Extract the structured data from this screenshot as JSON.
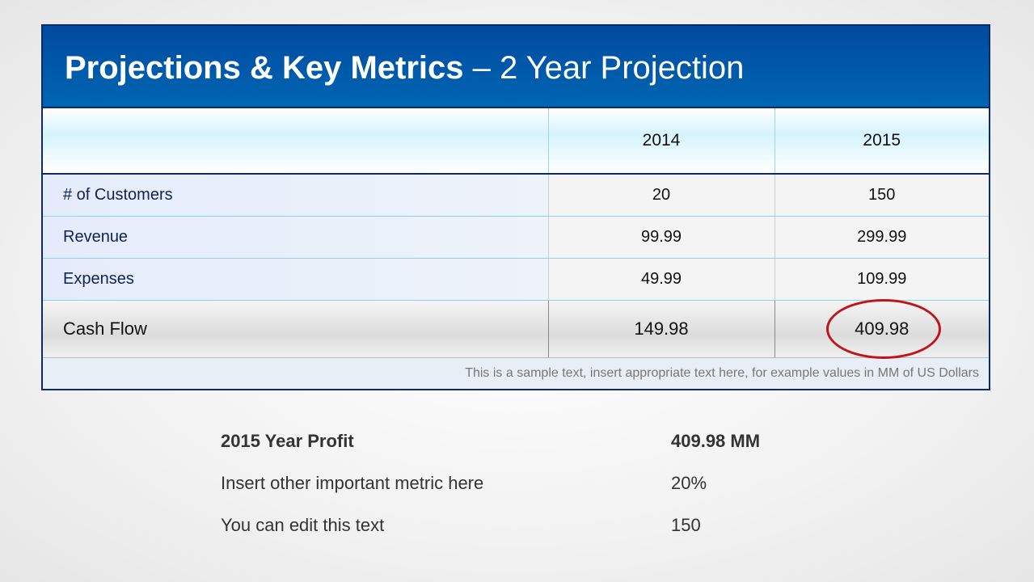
{
  "header": {
    "title_bold": "Projections & Key Metrics",
    "title_rest": "– 2 Year Projection"
  },
  "table": {
    "columns": [
      "",
      "2014",
      "2015"
    ],
    "rows": [
      [
        "# of Customers",
        "20",
        "150"
      ],
      [
        "Revenue",
        "99.99",
        "299.99"
      ],
      [
        "Expenses",
        "49.99",
        "109.99"
      ],
      [
        "Cash Flow",
        "149.98",
        "409.98"
      ]
    ],
    "note": "This is a sample text, insert appropriate text here, for example values in MM  of US Dollars"
  },
  "metrics": [
    [
      "2015 Year Profit",
      "409.98 MM"
    ],
    [
      "Insert other important metric here",
      "20%"
    ],
    [
      "You can edit this text",
      "150"
    ]
  ]
}
